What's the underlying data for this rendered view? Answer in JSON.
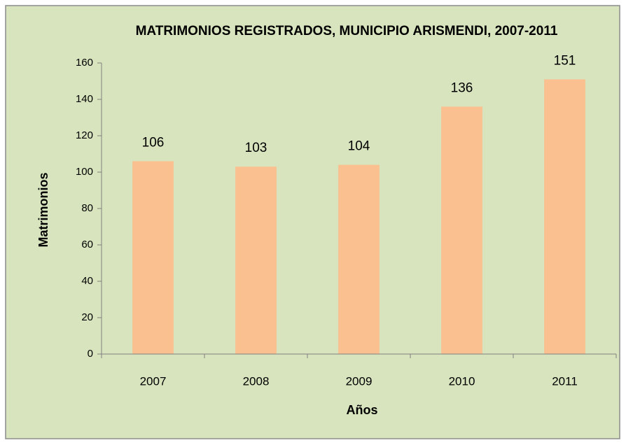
{
  "chart_data": {
    "type": "bar",
    "title": "MATRIMONIOS REGISTRADOS, MUNICIPIO ARISMENDI, 2007-2011",
    "x_label": "Años",
    "y_label": "Matrimonios",
    "categories": [
      "2007",
      "2008",
      "2009",
      "2010",
      "2011"
    ],
    "values": [
      106,
      103,
      104,
      136,
      151
    ],
    "color": "#fac090",
    "ylim": [
      0,
      160
    ],
    "yticks": [
      0,
      20,
      40,
      60,
      80,
      100,
      120,
      140,
      160
    ],
    "grid": false
  }
}
